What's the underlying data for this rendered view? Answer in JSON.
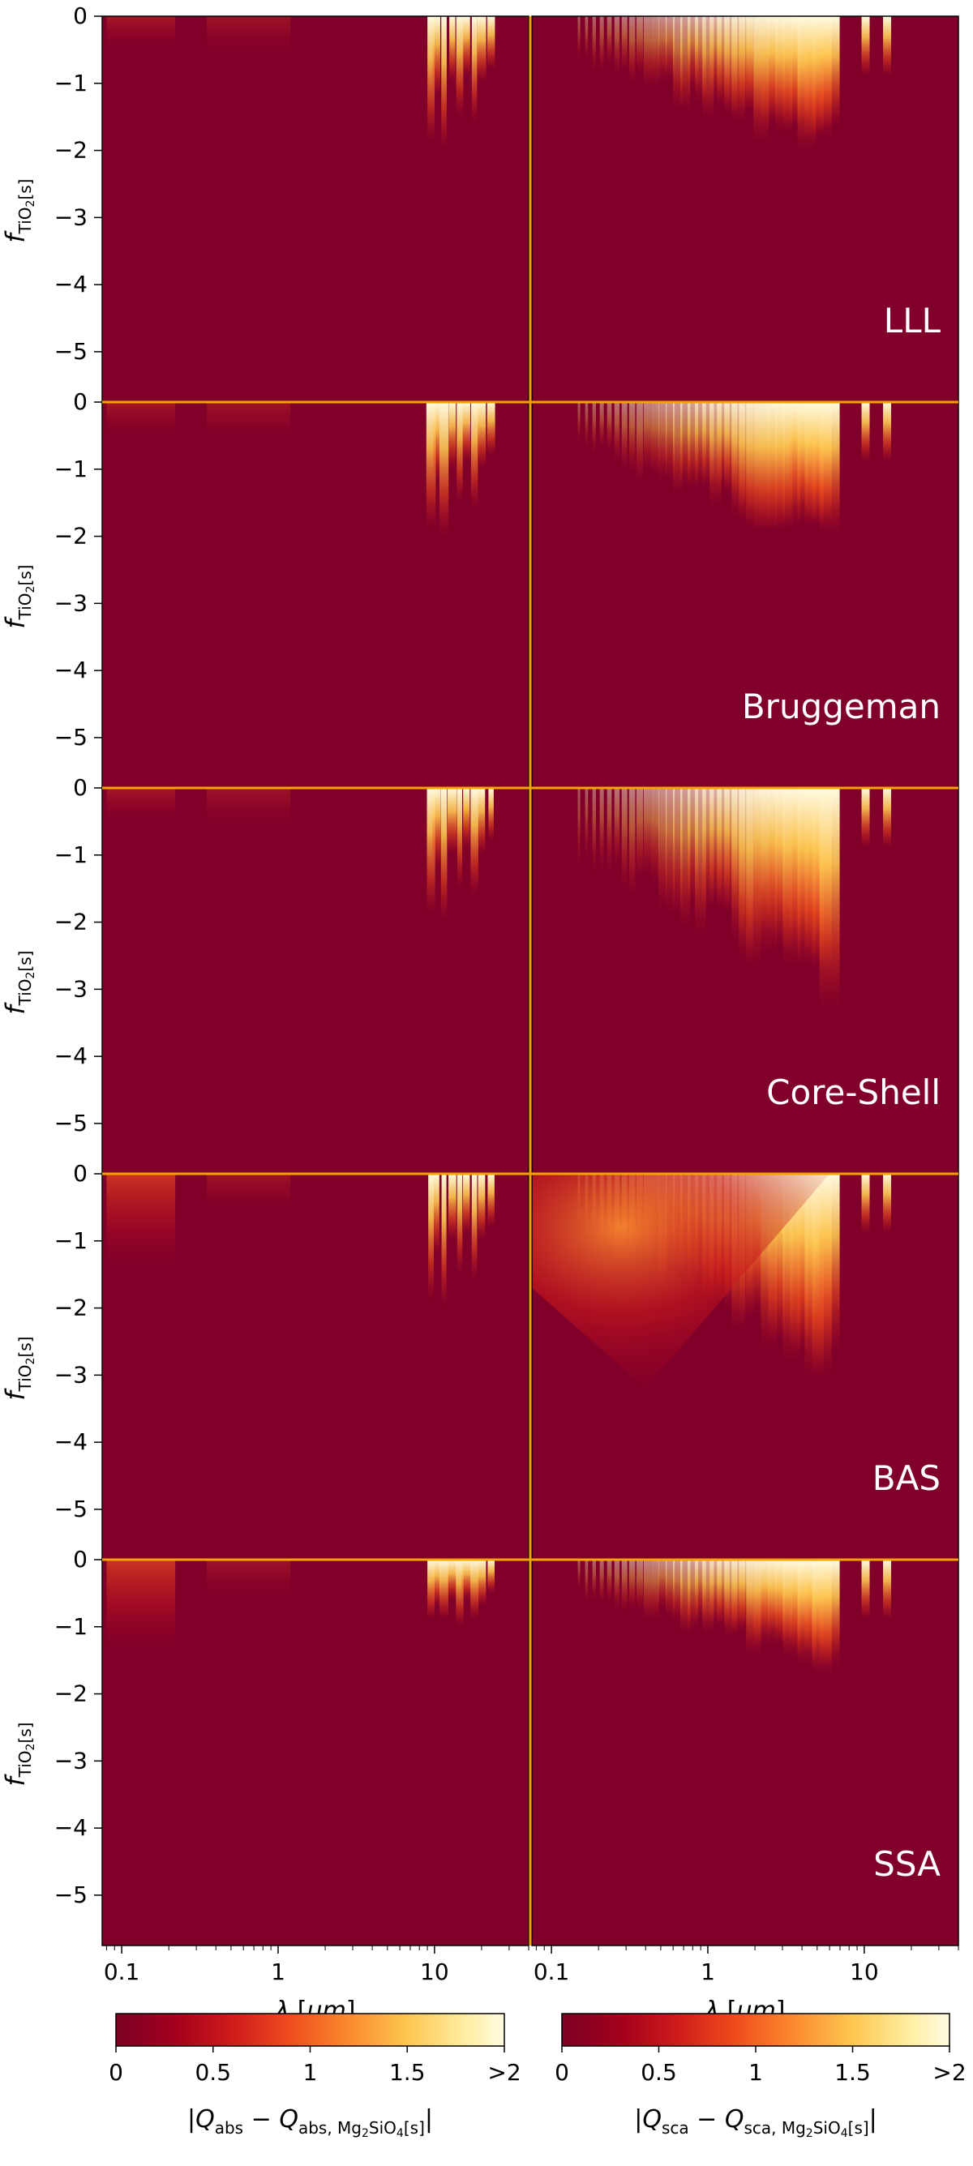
{
  "chart_data": {
    "type": "heatmap",
    "columns": [
      {
        "id": "abs",
        "quantity": "Q_abs"
      },
      {
        "id": "sca",
        "quantity": "Q_sca"
      }
    ],
    "rows": [
      {
        "label": "LLL"
      },
      {
        "label": "Bruggeman"
      },
      {
        "label": "Core-Shell"
      },
      {
        "label": "BAS"
      },
      {
        "label": "SSA"
      }
    ],
    "y_axis": {
      "label_main": "f",
      "label_sub": "TiO",
      "label_sub2": "2",
      "label_sub3": "[s]",
      "ticks": [
        "0",
        "−1",
        "−2",
        "−3",
        "−4",
        "−5"
      ],
      "tick_values": [
        0,
        -1,
        -2,
        -3,
        -4,
        -5
      ],
      "ylim": [
        -5.75,
        0
      ]
    },
    "x_axis": {
      "label_sym": "λ",
      "label_unit": " [",
      "label_mu": "μm",
      "label_end": "]",
      "scale": "log",
      "ticks": [
        "0.1",
        "1",
        "10"
      ],
      "tick_values": [
        0.1,
        1,
        10
      ],
      "xlim": [
        0.075,
        40
      ]
    },
    "colorbars": [
      {
        "id": "abs",
        "ticks": [
          "0",
          "0.5",
          "1",
          "1.5",
          ">2"
        ],
        "tick_values": [
          0,
          0.5,
          1,
          1.5,
          2
        ],
        "label_pre": "|",
        "label_q": "Q",
        "label_sub": "abs",
        "label_minus": " − ",
        "label_q2": "Q",
        "label_sub2": "abs, Mg",
        "label_sub3": "2",
        "label_sub4": "SiO",
        "label_sub5": "4",
        "label_sub6": "[s]",
        "label_post": "|"
      },
      {
        "id": "sca",
        "ticks": [
          "0",
          "0.5",
          "1",
          "1.5",
          ">2"
        ],
        "tick_values": [
          0,
          0.5,
          1,
          1.5,
          2
        ],
        "label_pre": "|",
        "label_q": "Q",
        "label_sub": "sca",
        "label_minus": " − ",
        "label_q2": "Q",
        "label_sub2": "sca, Mg",
        "label_sub3": "2",
        "label_sub4": "SiO",
        "label_sub5": "4",
        "label_sub6": "[s]",
        "label_post": "|"
      }
    ],
    "colormap": [
      "#7b0023",
      "#a3001d",
      "#cf1b1b",
      "#ef4d1d",
      "#fb8a2e",
      "#fdc64f",
      "#ffeea3",
      "#fffbe2"
    ],
    "background_color": "#80002a",
    "separator_color": "#f5a300"
  }
}
